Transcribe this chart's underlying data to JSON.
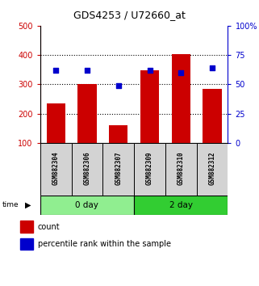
{
  "title": "GDS4253 / U72660_at",
  "samples": [
    "GSM882304",
    "GSM882306",
    "GSM882307",
    "GSM882309",
    "GSM882310",
    "GSM882312"
  ],
  "count_values": [
    235,
    300,
    160,
    348,
    402,
    285
  ],
  "percentile_values": [
    62,
    62,
    49,
    62,
    60,
    64
  ],
  "groups": [
    {
      "label": "0 day",
      "indices": [
        0,
        1,
        2
      ],
      "color": "#90EE90"
    },
    {
      "label": "2 day",
      "indices": [
        3,
        4,
        5
      ],
      "color": "#32CD32"
    }
  ],
  "bar_color": "#CC0000",
  "dot_color": "#0000CC",
  "left_ylim": [
    100,
    500
  ],
  "right_ylim": [
    0,
    100
  ],
  "left_yticks": [
    100,
    200,
    300,
    400,
    500
  ],
  "right_yticks": [
    0,
    25,
    50,
    75,
    100
  ],
  "right_yticklabels": [
    "0",
    "25",
    "50",
    "75",
    "100%"
  ],
  "grid_values": [
    200,
    300,
    400
  ],
  "bar_color_hex": "#CC0000",
  "dot_color_hex": "#0000CC",
  "left_axis_color": "#CC0000",
  "right_axis_color": "#0000CC",
  "label_bg": "#d3d3d3",
  "group0_color": "#90EE90",
  "group1_color": "#32CD32"
}
